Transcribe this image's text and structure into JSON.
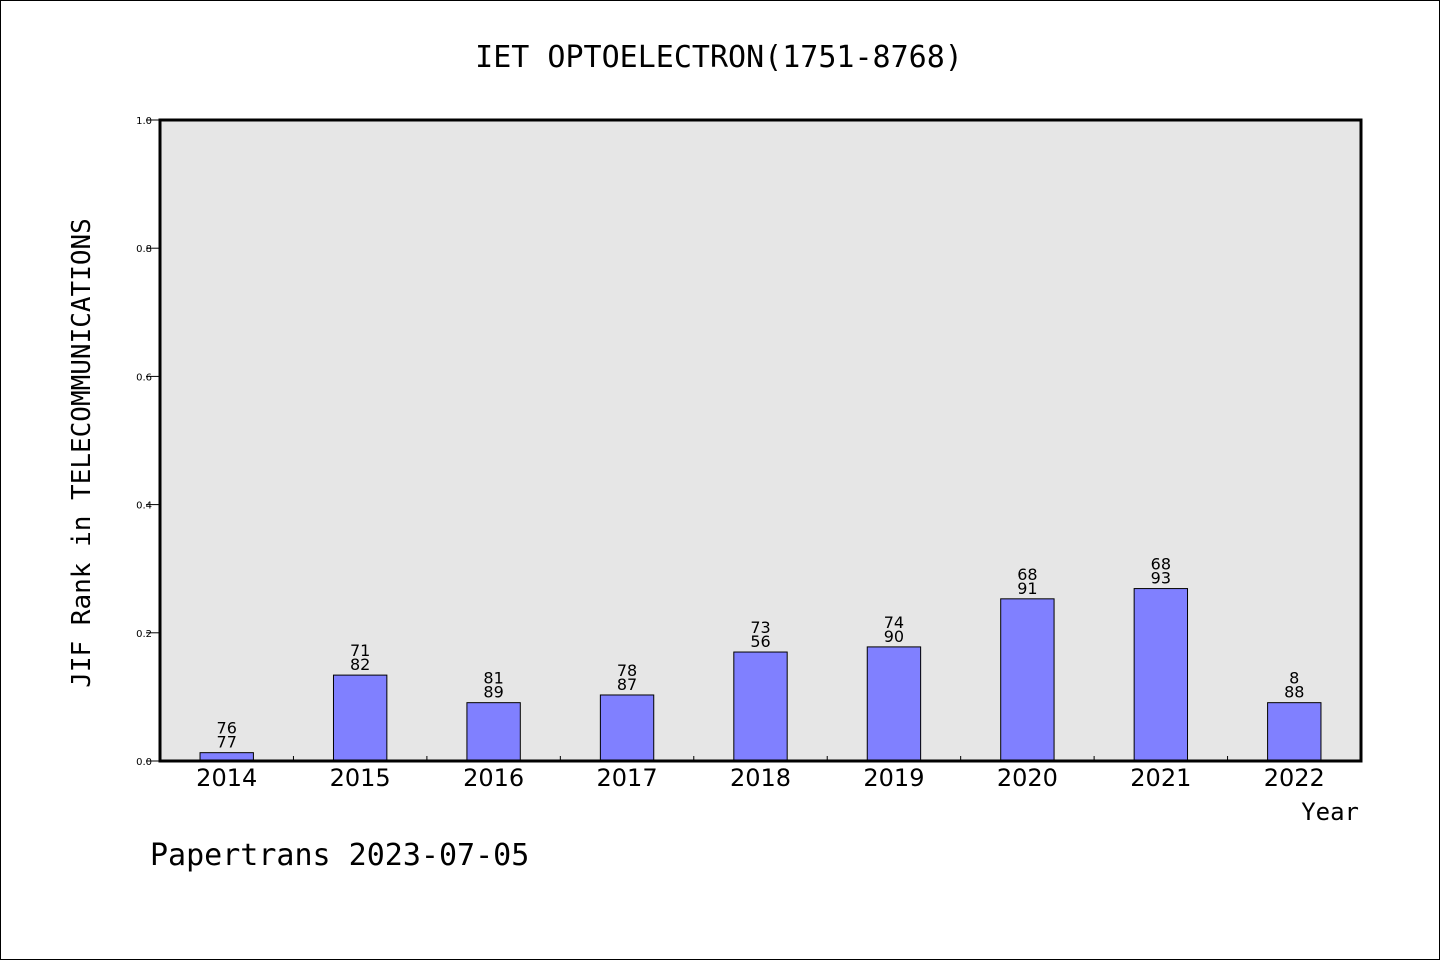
{
  "chart_data": {
    "type": "bar",
    "title": "IET OPTOELECTRON(1751-8768)",
    "ylabel": "JIF Rank in TELECOMMUNICATIONS",
    "xlabel": "Year",
    "ylim": [
      0,
      1.0
    ],
    "yticks": [
      "0.0",
      "0.2",
      "0.4",
      "0.6",
      "0.8",
      "1.0"
    ],
    "categories": [
      "2014",
      "2015",
      "2016",
      "2017",
      "2018",
      "2019",
      "2020",
      "2021",
      "2022"
    ],
    "values": [
      0.013,
      0.134,
      0.091,
      0.103,
      0.17,
      0.178,
      0.253,
      0.269,
      0.091
    ],
    "bar_labels_top": [
      "76",
      "71",
      "81",
      "78",
      "73",
      "74",
      "68",
      "68",
      "8"
    ],
    "bar_labels_bottom": [
      "77",
      "82",
      "89",
      "87",
      "56",
      "90",
      "91",
      "93",
      "88"
    ],
    "bar_color": "#8080ff",
    "plot_background": "#e6e6e6",
    "grid": false,
    "legend": "none"
  },
  "footer": "Papertrans 2023-07-05"
}
